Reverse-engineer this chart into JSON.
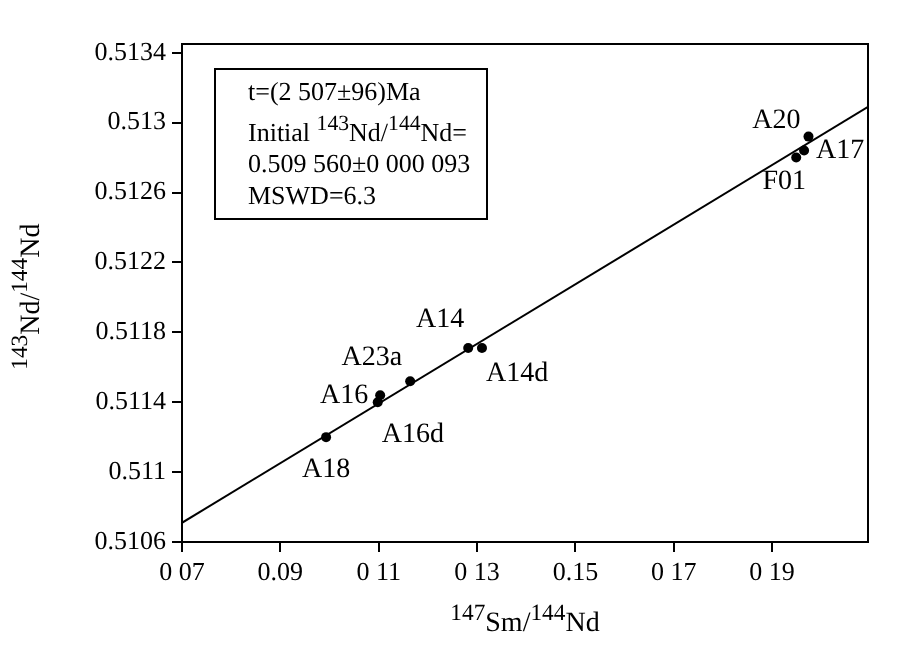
{
  "chart_data": {
    "type": "scatter",
    "xlabel": "$^{147}$Sm/$^{144}$Nd",
    "ylabel": "$^{143}$Nd/$^{144}$Nd",
    "xlim": [
      0.07,
      0.2095
    ],
    "ylim": [
      0.5106,
      0.51345
    ],
    "xticks": [
      {
        "value": 0.07,
        "label": "0 07"
      },
      0.09,
      {
        "value": 0.11,
        "label": "0 11"
      },
      {
        "value": 0.13,
        "label": "0 13"
      },
      0.15,
      {
        "value": 0.17,
        "label": "0 17"
      },
      {
        "value": 0.19,
        "label": "0 19"
      }
    ],
    "yticks": [
      0.5106,
      0.511,
      0.5114,
      0.5118,
      0.5122,
      0.5126,
      0.513,
      0.5134
    ],
    "grid": false,
    "legend": false,
    "series": [
      {
        "color": "#000000",
        "marker": "circle",
        "x": [
          0.0993,
          0.1103,
          0.1098,
          0.1164,
          0.1282,
          0.131,
          0.1974,
          0.1965,
          0.1949
        ],
        "values": [
          0.5112,
          0.51144,
          0.5114,
          0.51152,
          0.51171,
          0.51171,
          0.51292,
          0.51284,
          0.5128
        ]
      },
      {
        "type": "line",
        "marker": "none",
        "color": "#000000",
        "x": [
          0.07,
          0.2095
        ],
        "values": [
          0.51071,
          0.51309
        ]
      }
    ],
    "annotations": [
      "t=(2 507±96)Ma",
      "Initial $^{143}$Nd/$^{144}$Nd=",
      "0.509 560±0 000 093",
      "MSWD=6.3",
      {
        "text": "A18",
        "x": 0.0993,
        "y": 0.5112
      },
      {
        "text": "A16",
        "x": 0.1103,
        "y": 0.51144
      },
      {
        "text": "A16d",
        "x": 0.1098,
        "y": 0.5114
      },
      {
        "text": "A23a",
        "x": 0.1164,
        "y": 0.51152
      },
      {
        "text": "A14",
        "x": 0.1282,
        "y": 0.51171
      },
      {
        "text": "A14d",
        "x": 0.131,
        "y": 0.51171
      },
      {
        "text": "A20",
        "x": 0.1974,
        "y": 0.51292
      },
      {
        "text": "A17",
        "x": 0.1965,
        "y": 0.51284
      },
      {
        "text": "F01",
        "x": 0.1949,
        "y": 0.5128
      }
    ]
  }
}
